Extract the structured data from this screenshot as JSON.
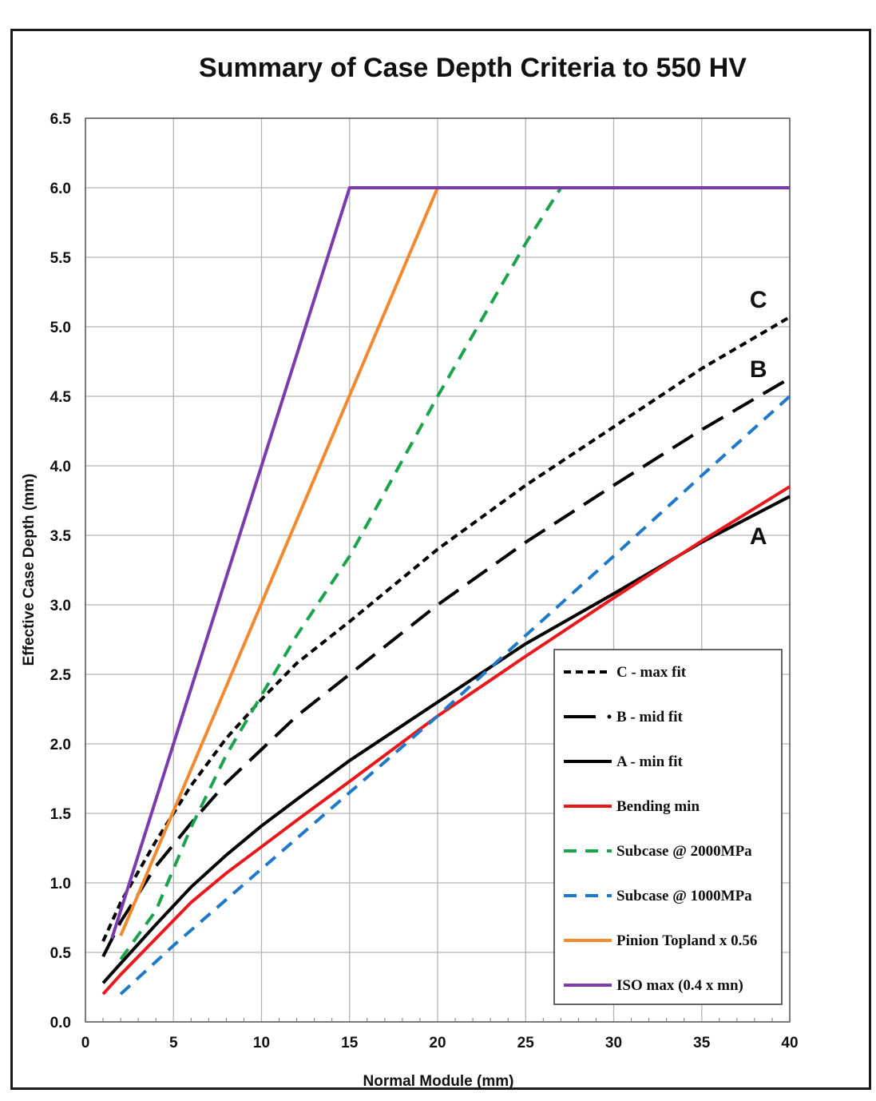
{
  "chart_data": {
    "type": "line",
    "title": "Summary of Case Depth Criteria to 550 HV",
    "xlabel": "Normal Module (mm)",
    "ylabel": "Effective Case Depth (mm)",
    "xlim": [
      0,
      40
    ],
    "ylim": [
      0,
      6.5
    ],
    "xticks": [
      "0",
      "5",
      "10",
      "15",
      "20",
      "25",
      "30",
      "35",
      "40"
    ],
    "yticks": [
      "0.0",
      "0.5",
      "1.0",
      "1.5",
      "2.0",
      "2.5",
      "3.0",
      "3.5",
      "4.0",
      "4.5",
      "5.0",
      "5.5",
      "6.0",
      "6.5"
    ],
    "grid": true,
    "legend_position": "lower-right",
    "annotations": [
      {
        "text": "C",
        "x": 38.0,
        "y": 5.2
      },
      {
        "text": "B",
        "x": 38.0,
        "y": 4.7
      },
      {
        "text": "A",
        "x": 38.0,
        "y": 3.5
      }
    ],
    "series": [
      {
        "name": "C - max fit",
        "color": "#000000",
        "style": "short-dash",
        "x": [
          1,
          2,
          4,
          6,
          8,
          10,
          12,
          15,
          20,
          25,
          30,
          35,
          40
        ],
        "y": [
          0.58,
          0.86,
          1.3,
          1.7,
          2.04,
          2.32,
          2.58,
          2.88,
          3.4,
          3.86,
          4.28,
          4.7,
          5.07
        ]
      },
      {
        "name": "B - mid fit",
        "color": "#000000",
        "style": "long-dash",
        "x": [
          1,
          2,
          4,
          6,
          8,
          10,
          12,
          15,
          20,
          25,
          30,
          35,
          40
        ],
        "y": [
          0.47,
          0.72,
          1.12,
          1.43,
          1.72,
          1.96,
          2.2,
          2.5,
          3.0,
          3.45,
          3.86,
          4.26,
          4.63
        ]
      },
      {
        "name": "A - min fit",
        "color": "#000000",
        "style": "solid",
        "x": [
          1,
          2,
          4,
          6,
          8,
          10,
          12,
          15,
          20,
          25,
          30,
          35,
          40
        ],
        "y": [
          0.28,
          0.42,
          0.7,
          0.97,
          1.2,
          1.41,
          1.6,
          1.88,
          2.3,
          2.72,
          3.08,
          3.45,
          3.78
        ]
      },
      {
        "name": "Bending min",
        "color": "#e8191c",
        "style": "solid",
        "x": [
          1,
          2,
          4,
          6,
          8,
          10,
          12,
          15,
          20,
          25,
          30,
          35,
          40
        ],
        "y": [
          0.2,
          0.34,
          0.6,
          0.86,
          1.07,
          1.26,
          1.45,
          1.73,
          2.2,
          2.63,
          3.05,
          3.46,
          3.85
        ]
      },
      {
        "name": "Subcase @ 2000MPa",
        "color": "#1aa34a",
        "style": "dash",
        "x": [
          2,
          4,
          6,
          8,
          10,
          12,
          15,
          20,
          25,
          27
        ],
        "y": [
          0.45,
          0.8,
          1.4,
          1.92,
          2.35,
          2.78,
          3.35,
          4.5,
          5.6,
          6.0
        ]
      },
      {
        "name": "Subcase @ 1000MPa",
        "color": "#1f78c8",
        "style": "dash",
        "x": [
          2,
          5,
          10,
          15,
          20,
          25,
          30,
          35,
          40
        ],
        "y": [
          0.2,
          0.55,
          1.1,
          1.65,
          2.2,
          2.78,
          3.35,
          3.93,
          4.5
        ]
      },
      {
        "name": "Pinion Topland x 0.56",
        "color": "#f0892f",
        "style": "solid",
        "x": [
          2,
          20,
          40
        ],
        "y": [
          0.62,
          6.0,
          6.0
        ]
      },
      {
        "name": "ISO max (0.4 x mn)",
        "color": "#7b3aae",
        "style": "solid",
        "x": [
          1.5,
          15,
          40
        ],
        "y": [
          0.6,
          6.0,
          6.0
        ]
      }
    ]
  }
}
